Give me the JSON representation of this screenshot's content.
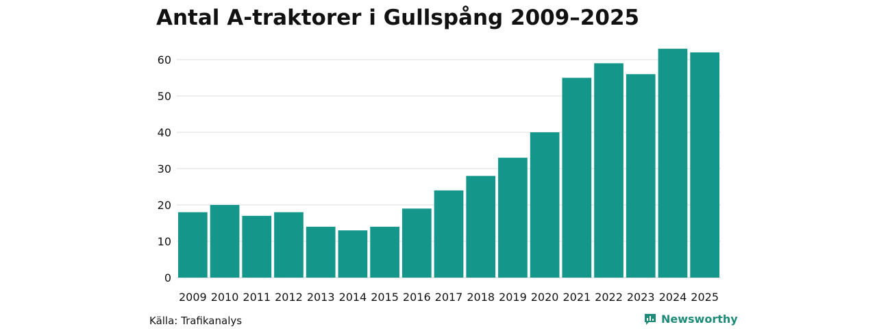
{
  "title": "Antal A-traktorer i Gullspång 2009–2025",
  "source": "Källa: Trafikanalys",
  "brand": "Newsworthy",
  "colors": {
    "bar": "#14978a",
    "grid": "#dddddd",
    "brand": "#1e8a78"
  },
  "chart_data": {
    "type": "bar",
    "title": "Antal A-traktorer i Gullspång 2009–2025",
    "xlabel": "",
    "ylabel": "",
    "categories": [
      "2009",
      "2010",
      "2011",
      "2012",
      "2013",
      "2014",
      "2015",
      "2016",
      "2017",
      "2018",
      "2019",
      "2020",
      "2021",
      "2022",
      "2023",
      "2024",
      "2025"
    ],
    "values": [
      18,
      20,
      17,
      18,
      14,
      13,
      14,
      19,
      24,
      28,
      33,
      40,
      55,
      59,
      56,
      63,
      62
    ],
    "ylim": [
      0,
      65
    ],
    "yticks": [
      0,
      10,
      20,
      30,
      40,
      50,
      60
    ],
    "grid": true,
    "legend": "none"
  }
}
